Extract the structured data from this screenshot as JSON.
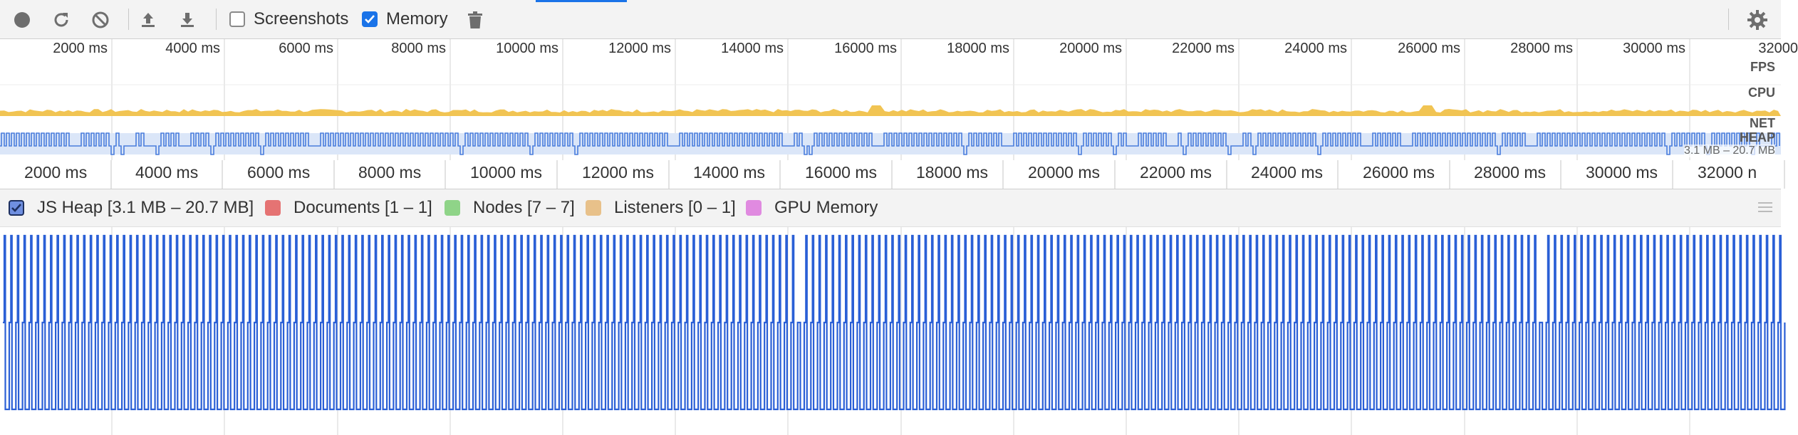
{
  "toolbar": {
    "record_icon": "record-icon",
    "reload_icon": "reload-icon",
    "clear_icon": "clear-icon",
    "load_icon": "upload-icon",
    "save_icon": "download-icon",
    "screenshots_label": "Screenshots",
    "screenshots_checked": false,
    "memory_label": "Memory",
    "memory_checked": true,
    "garbage_icon": "trash-icon",
    "settings_icon": "gear-icon"
  },
  "overview": {
    "tick_labels": [
      "2000 ms",
      "4000 ms",
      "6000 ms",
      "8000 ms",
      "10000 ms",
      "12000 ms",
      "14000 ms",
      "16000 ms",
      "18000 ms",
      "20000 ms",
      "22000 ms",
      "24000 ms",
      "26000 ms",
      "28000 ms",
      "30000 ms",
      "32000"
    ],
    "tracks": {
      "fps": "FPS",
      "cpu": "CPU",
      "net": "NET",
      "heap": "HEAP"
    },
    "heap_range": "3.1 MB – 20.7 MB",
    "colors": {
      "cpu": "#f1c453",
      "heap_fill": "#dbe6f8",
      "heap_line": "#4a7ddc"
    }
  },
  "axis2": {
    "tick_labels": [
      "2000 ms",
      "4000 ms",
      "6000 ms",
      "8000 ms",
      "10000 ms",
      "12000 ms",
      "14000 ms",
      "16000 ms",
      "18000 ms",
      "20000 ms",
      "22000 ms",
      "24000 ms",
      "26000 ms",
      "28000 ms",
      "30000 ms",
      "32000 n"
    ]
  },
  "legend": {
    "items": [
      {
        "label": "JS Heap [3.1 MB – 20.7 MB]",
        "color": "#4a6fd8",
        "checked": true
      },
      {
        "label": "Documents [1 – 1]",
        "color": "#e57373",
        "checked": false
      },
      {
        "label": "Nodes [7 – 7]",
        "color": "#8fd488",
        "checked": false
      },
      {
        "label": "Listeners [0 – 1]",
        "color": "#e8c18a",
        "checked": false
      },
      {
        "label": "GPU Memory",
        "color": "#e08ae0",
        "checked": false
      }
    ]
  },
  "chart_data": {
    "type": "line",
    "title": "",
    "series": [
      {
        "name": "JS Heap",
        "range": "3.1 MB – 20.7 MB"
      }
    ],
    "x_range_ms": [
      0,
      32000
    ],
    "ylim_mb": [
      3.1,
      20.7
    ],
    "pattern": "sawtooth square wave: heap alternates between ~3.1 MB and ~20.7 MB roughly every 67 ms, with intermittent drops to ~11 MB",
    "grid": true,
    "color": "#2a5fd6"
  }
}
